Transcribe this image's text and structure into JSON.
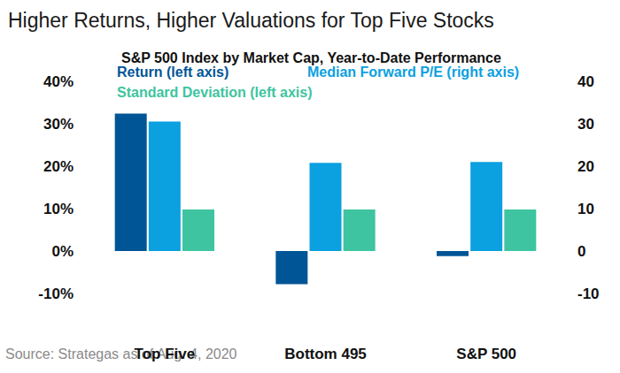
{
  "chart_data": {
    "type": "bar",
    "title": "Higher Returns, Higher Valuations for Top Five Stocks",
    "subtitle": "S&P 500 Index by Market Cap, Year-to-Date Performance",
    "source": "Source: Strategas as of Aug. 4, 2020",
    "categories": [
      "Top Five",
      "Bottom 495",
      "S&P 500"
    ],
    "series": [
      {
        "name": "Return (left axis)",
        "color": "#005596",
        "values": [
          32.4,
          -7.8,
          -1.2
        ]
      },
      {
        "name": "Median Forward P/E (right axis)",
        "color": "#0ba0e0",
        "values": [
          30.5,
          20.8,
          21.0
        ],
        "axis": "y2"
      },
      {
        "name": "Standard Deviation (left axis)",
        "color": "#3ec4a0",
        "values": [
          9.8,
          9.8,
          9.8
        ]
      }
    ],
    "ylim": [
      -10,
      40
    ],
    "yticks": [
      {
        "value": -10,
        "label": "-10%"
      },
      {
        "value": 0,
        "label": "0%"
      },
      {
        "value": 10,
        "label": "10%"
      },
      {
        "value": 20,
        "label": "20%"
      },
      {
        "value": 30,
        "label": "30%"
      },
      {
        "value": 40,
        "label": "40%"
      }
    ],
    "y2lim": [
      -10,
      40
    ],
    "y2ticks": [
      -10,
      0,
      10,
      20,
      30,
      40
    ],
    "grid": false
  }
}
